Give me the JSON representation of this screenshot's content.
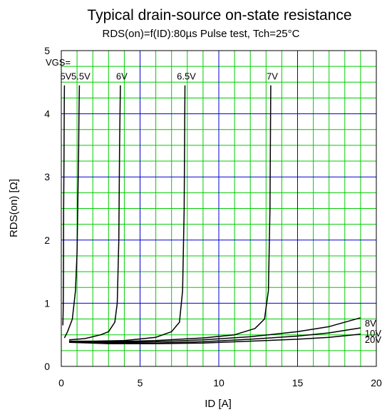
{
  "chart_data": {
    "type": "line",
    "title": "Typical drain-source on-state resistance",
    "subtitle": "RDS(on)=f(ID):80µs Pulse test, Tch=25°C",
    "xlabel": "ID [A]",
    "ylabel": "RDS(on) [Ω]",
    "xlim": [
      0,
      20
    ],
    "ylim": [
      0,
      5
    ],
    "x_ticks": [
      "0",
      "5",
      "10",
      "15",
      "20"
    ],
    "y_ticks": [
      "0",
      "1",
      "2",
      "3",
      "4",
      "5"
    ],
    "grid": true,
    "colors": {
      "major_grid": "#0000cc",
      "minor_grid": "#00cc00",
      "curve": "#000000"
    },
    "legend_title": "VGS=",
    "series": [
      {
        "name": "5V",
        "label_position": "top",
        "x": [
          0.1,
          0.12,
          0.14,
          0.15,
          0.17,
          0.18,
          0.19,
          0.2
        ],
        "y": [
          0.65,
          0.9,
          1.5,
          2.5,
          3.3,
          3.8,
          4.2,
          4.45
        ]
      },
      {
        "name": "5.5V",
        "label_position": "top",
        "x": [
          0.2,
          0.4,
          0.7,
          0.9,
          1.0,
          1.05,
          1.1,
          1.12,
          1.15
        ],
        "y": [
          0.45,
          0.55,
          0.75,
          1.2,
          1.8,
          2.6,
          3.4,
          4.0,
          4.45
        ]
      },
      {
        "name": "6V",
        "label_position": "top",
        "x": [
          0.5,
          1.5,
          2.5,
          3.0,
          3.4,
          3.55,
          3.65,
          3.7,
          3.75
        ],
        "y": [
          0.42,
          0.44,
          0.5,
          0.55,
          0.7,
          1.0,
          2.0,
          3.5,
          4.45
        ]
      },
      {
        "name": "6.5V",
        "label_position": "top",
        "x": [
          0.5,
          2.0,
          4.0,
          6.0,
          7.0,
          7.5,
          7.7,
          7.8,
          7.85
        ],
        "y": [
          0.4,
          0.4,
          0.41,
          0.46,
          0.55,
          0.7,
          1.2,
          2.5,
          4.45
        ]
      },
      {
        "name": "7V",
        "label_position": "top",
        "x": [
          0.5,
          3.0,
          6.0,
          9.0,
          11.0,
          12.3,
          12.9,
          13.15,
          13.25,
          13.3
        ],
        "y": [
          0.38,
          0.39,
          0.41,
          0.45,
          0.5,
          0.6,
          0.75,
          1.2,
          2.5,
          4.45
        ]
      },
      {
        "name": "8V",
        "label_position": "right",
        "x": [
          0.5,
          3.0,
          6.0,
          9.0,
          12.0,
          15.0,
          17.0,
          19.0
        ],
        "y": [
          0.4,
          0.38,
          0.39,
          0.42,
          0.47,
          0.55,
          0.63,
          0.77
        ]
      },
      {
        "name": "10V",
        "label_position": "right",
        "x": [
          0.5,
          3.0,
          6.0,
          9.0,
          12.0,
          15.0,
          17.0,
          19.0
        ],
        "y": [
          0.4,
          0.37,
          0.37,
          0.39,
          0.43,
          0.48,
          0.53,
          0.61
        ]
      },
      {
        "name": "20V",
        "label_position": "right",
        "x": [
          0.5,
          3.0,
          6.0,
          9.0,
          12.0,
          15.0,
          17.0,
          19.0
        ],
        "y": [
          0.38,
          0.36,
          0.36,
          0.37,
          0.4,
          0.43,
          0.46,
          0.51
        ]
      }
    ]
  }
}
